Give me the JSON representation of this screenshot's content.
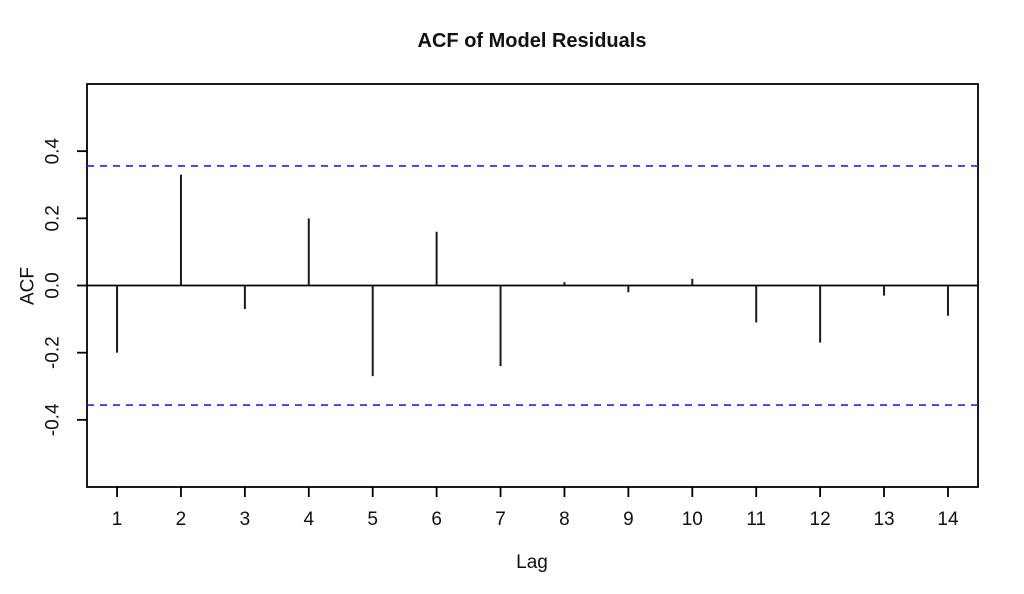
{
  "chart_data": {
    "type": "bar",
    "bar_style": "stick",
    "title": "ACF of Model Residuals",
    "xlabel": "Lag",
    "ylabel": "ACF",
    "categories": [
      1,
      2,
      3,
      4,
      5,
      6,
      7,
      8,
      9,
      10,
      11,
      12,
      13,
      14
    ],
    "values": [
      -0.2,
      0.33,
      -0.07,
      0.2,
      -0.27,
      0.16,
      -0.24,
      0.01,
      -0.02,
      0.02,
      -0.11,
      -0.17,
      -0.03,
      -0.09
    ],
    "confidence_bounds": {
      "upper": 0.356,
      "lower": -0.356,
      "line_style": "dashed",
      "color": "#2222ee"
    },
    "zero_line": 0,
    "xlim": [
      0.53,
      14.47
    ],
    "ylim": [
      -0.6,
      0.6
    ],
    "y_ticks": [
      -0.4,
      -0.2,
      0.0,
      0.2,
      0.4
    ],
    "grid": false,
    "legend": "none",
    "bar_color": "#1a1a1a",
    "axis_color": "#000000",
    "background_color": "#ffffff"
  }
}
